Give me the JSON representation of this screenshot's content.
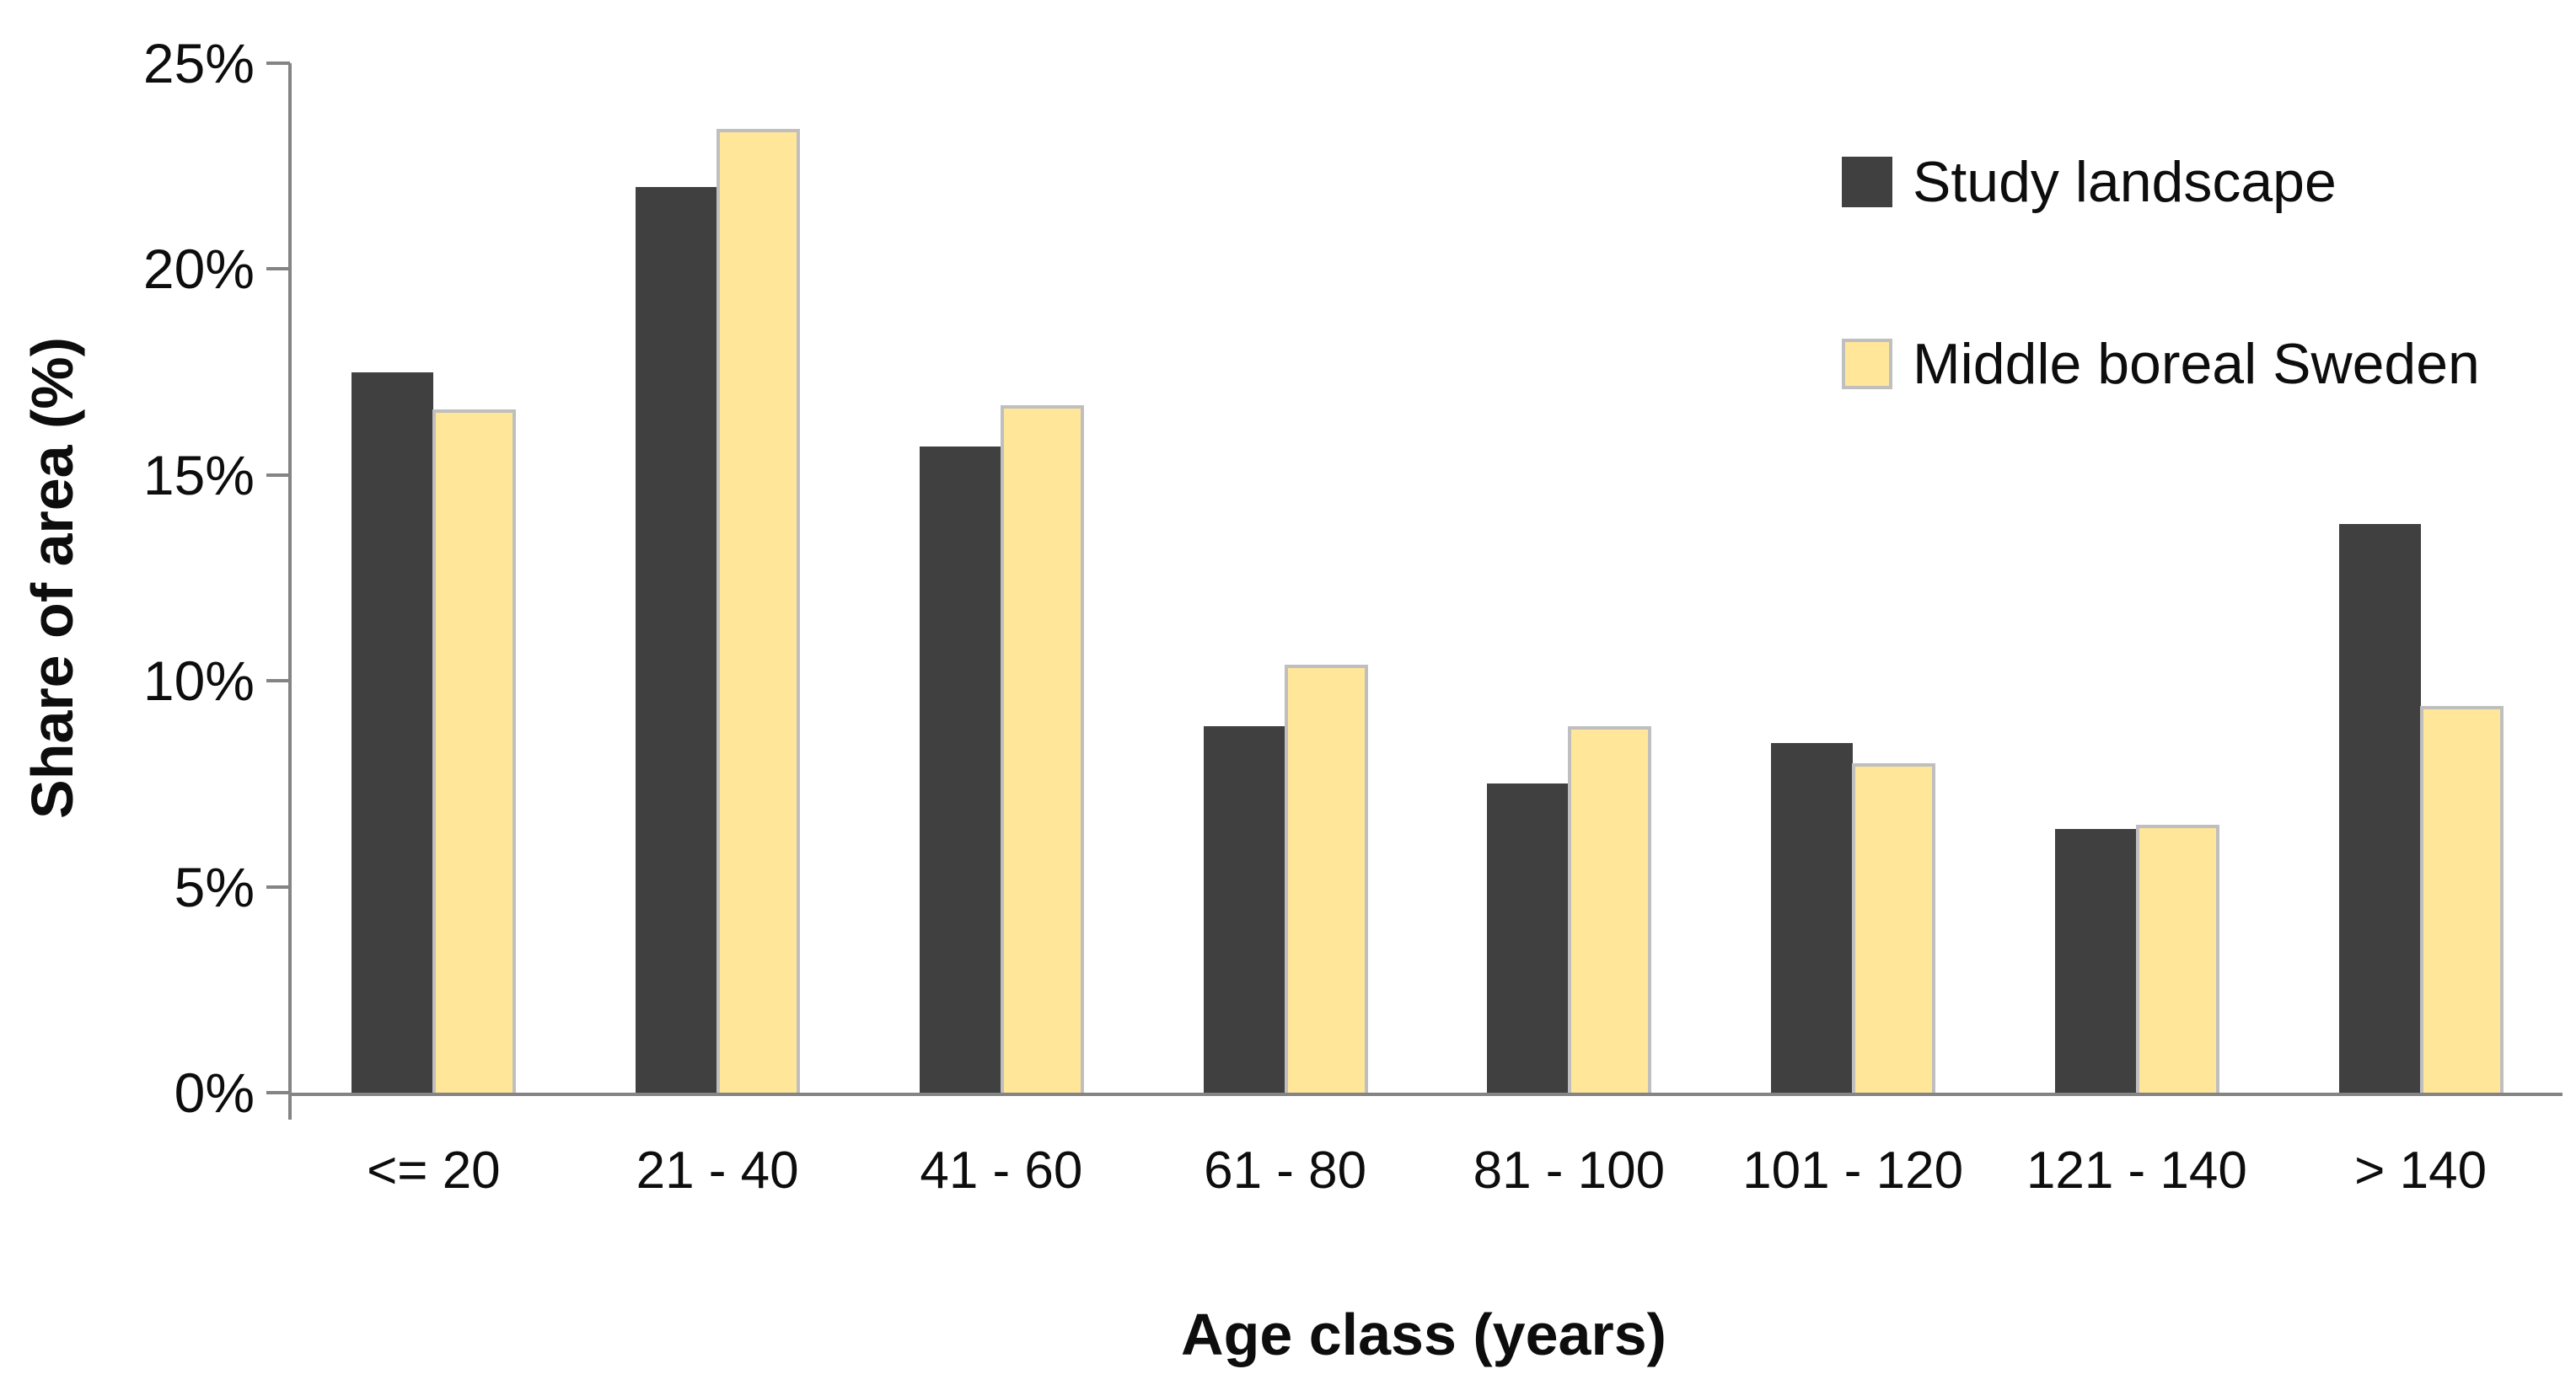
{
  "chart_data": {
    "type": "bar",
    "title": "",
    "categories": [
      "<= 20",
      "21 - 40",
      "41 - 60",
      "61 - 80",
      "81 - 100",
      "101 - 120",
      "121 - 140",
      "> 140"
    ],
    "series": [
      {
        "name": "Study landscape",
        "color": "#404040",
        "values": [
          17.5,
          22.0,
          15.7,
          8.9,
          7.5,
          8.5,
          6.4,
          13.8
        ]
      },
      {
        "name": "Middle boreal Sweden",
        "color": "#FFE699",
        "border_color": "#BFBFBF",
        "values": [
          16.6,
          23.4,
          16.7,
          10.4,
          8.9,
          8.0,
          6.5,
          9.4
        ]
      }
    ],
    "xlabel": "Age class (years)",
    "ylabel": "Share of area (%)",
    "ylim": [
      0,
      25
    ],
    "ytick_step": 5,
    "ytick_labels": [
      "0%",
      "5%",
      "10%",
      "15%",
      "20%",
      "25%"
    ],
    "grid": false,
    "legend_position": "top-right",
    "axis_color": "#848484",
    "text_color": "#0d0d0d",
    "background": "#ffffff"
  }
}
